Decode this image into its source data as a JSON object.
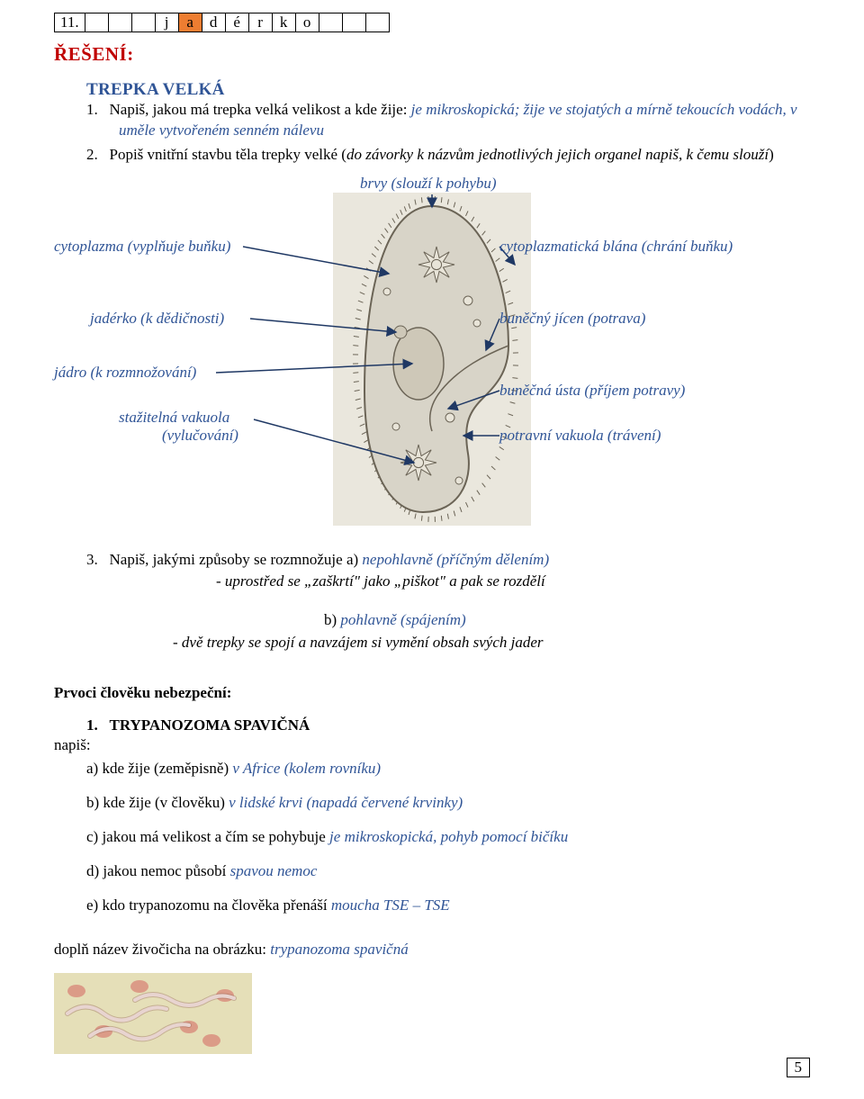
{
  "row11": {
    "num": "11.",
    "cells": [
      {
        "t": "",
        "hi": false
      },
      {
        "t": "",
        "hi": false
      },
      {
        "t": "",
        "hi": false
      },
      {
        "t": "j",
        "hi": false
      },
      {
        "t": "a",
        "hi": true
      },
      {
        "t": "d",
        "hi": false
      },
      {
        "t": "é",
        "hi": false
      },
      {
        "t": "r",
        "hi": false
      },
      {
        "t": "k",
        "hi": false
      },
      {
        "t": "o",
        "hi": false
      },
      {
        "t": "",
        "hi": false
      },
      {
        "t": "",
        "hi": false
      },
      {
        "t": "",
        "hi": false
      }
    ]
  },
  "h_reseni": "ŘEŠENÍ:",
  "h_trepka": "TREPKA VELKÁ",
  "q1_num": "1.",
  "q1_txt": "Napiš, jakou má trepka velká velikost a kde žije: ",
  "q1_ans": "je mikroskopická; žije ve stojatých a mírně tekoucích vodách, v uměle vytvořeném senném nálevu",
  "q2_num": "2.",
  "q2_txt_a": "Popiš vnitřní stavbu těla trepky velké (",
  "q2_txt_b": "do závorky k názvům jednotlivých jejich organel napiš, k čemu slouží",
  "q2_txt_c": ")",
  "labels": {
    "brvy": "brvy (slouží k pohybu)",
    "cytoplazma": "cytoplazma (vyplňuje buňku)",
    "blana": "cytoplazmatická blána (chrání buňku)",
    "jaderko": "jadérko (k dědičnosti)",
    "jicen": "buněčný jícen (potrava)",
    "jadro": "jádro (k rozmnožování)",
    "usta": "buněčná ústa (příjem potravy)",
    "staz": "stažitelná vakuola",
    "staz2": "(vylučování)",
    "potrv": "potravní vakuola (trávení)"
  },
  "cell_diagram": {
    "fill": "#d8d4c8",
    "stroke": "#6b6456",
    "vac_fill": "#e8e4d8",
    "nucleus_fill": "#cec8b8",
    "bg": "#eae7dd"
  },
  "q3_num": "3.",
  "q3_txt": "Napiš, jakými způsoby se rozmnožuje a) ",
  "q3_ans_a": "nepohlavně (příčným dělením)",
  "q3_sub_a": "- uprostřed se „zaškrtí\" jako „piškot\" a pak se rozdělí",
  "q3_b_lbl": "b) ",
  "q3_b_ans": "pohlavně (spájením)",
  "q3_b_sub": "- dvě trepky se spojí a navzájem si vymění obsah svých jader",
  "prvoci": "Prvoci člověku nebezpeční:",
  "tryp_num": "1.",
  "tryp": "TRYPANOZOMA SPAVIČNÁ",
  "napis": "napiš:",
  "a": {
    "q": "a) kde žije (zeměpisně) ",
    "ans": "v Africe (kolem rovníku)"
  },
  "b": {
    "q": "b) kde žije (v člověku) ",
    "ans": "v lidské krvi (napadá červené krvinky)"
  },
  "c": {
    "q": "c) jakou má velikost a čím se pohybuje ",
    "ans": "je mikroskopická, pohyb pomocí bičíku"
  },
  "d": {
    "q": "d) jakou nemoc působí ",
    "ans": "spavou nemoc"
  },
  "e": {
    "q": "e) kdo trypanozomu na člověka přenáší ",
    "ans": "moucha TSE – TSE"
  },
  "dopln": {
    "q": "doplň název živočicha na obrázku: ",
    "ans": "trypanozoma spavičná"
  },
  "trypimg": {
    "bg": "#e5dfb8",
    "cell_fill": "#e8d4d0",
    "cell_stroke": "#8a5a4a",
    "blood_fill": "#d88a7a"
  },
  "arrow_color": "#1f3864",
  "pagenum": "5"
}
